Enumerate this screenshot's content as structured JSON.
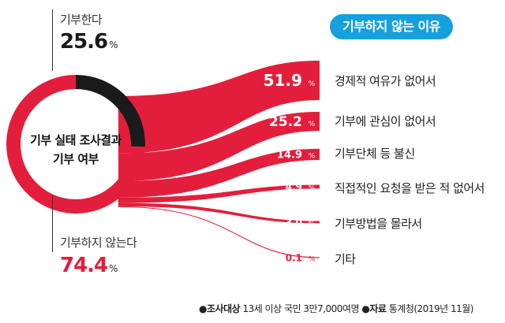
{
  "chart_data": [
    {
      "type": "pie",
      "center_label": [
        "기부 실태 조사결과",
        "기부 여부"
      ],
      "slices": [
        {
          "label": "기부한다",
          "value": 25.6,
          "color": "#1a1a1a"
        },
        {
          "label": "기부하지 않는다",
          "value": 74.4,
          "color": "#e31e3c"
        }
      ],
      "unit": "%"
    },
    {
      "type": "bar",
      "title": "기부하지 않는 이유",
      "categories": [
        "경제적 여유가 없어서",
        "기부에 관심이 없어서",
        "기부단체 등 불신",
        "직접적인 요청을 받은 적 없어서",
        "기부방법을 몰라서",
        "기타"
      ],
      "values": [
        51.9,
        25.2,
        14.9,
        4.9,
        3.0,
        0.1
      ],
      "value_labels": [
        "51.9",
        "25.2",
        "14.9",
        "4.9",
        "3.0",
        "0.1"
      ],
      "unit": "%",
      "color": "#e31e3c"
    }
  ],
  "donors": {
    "label": "기부한다",
    "value": "25.6",
    "unit": "%"
  },
  "non_donors": {
    "label": "기부하지 않는다",
    "value": "74.4",
    "unit": "%"
  },
  "footer": {
    "survey_key": "조사대상",
    "survey_value": "13세 이상 국민 3만7,000여명",
    "source_key": "자료",
    "source_value": "통계청(2019년 11월)"
  }
}
